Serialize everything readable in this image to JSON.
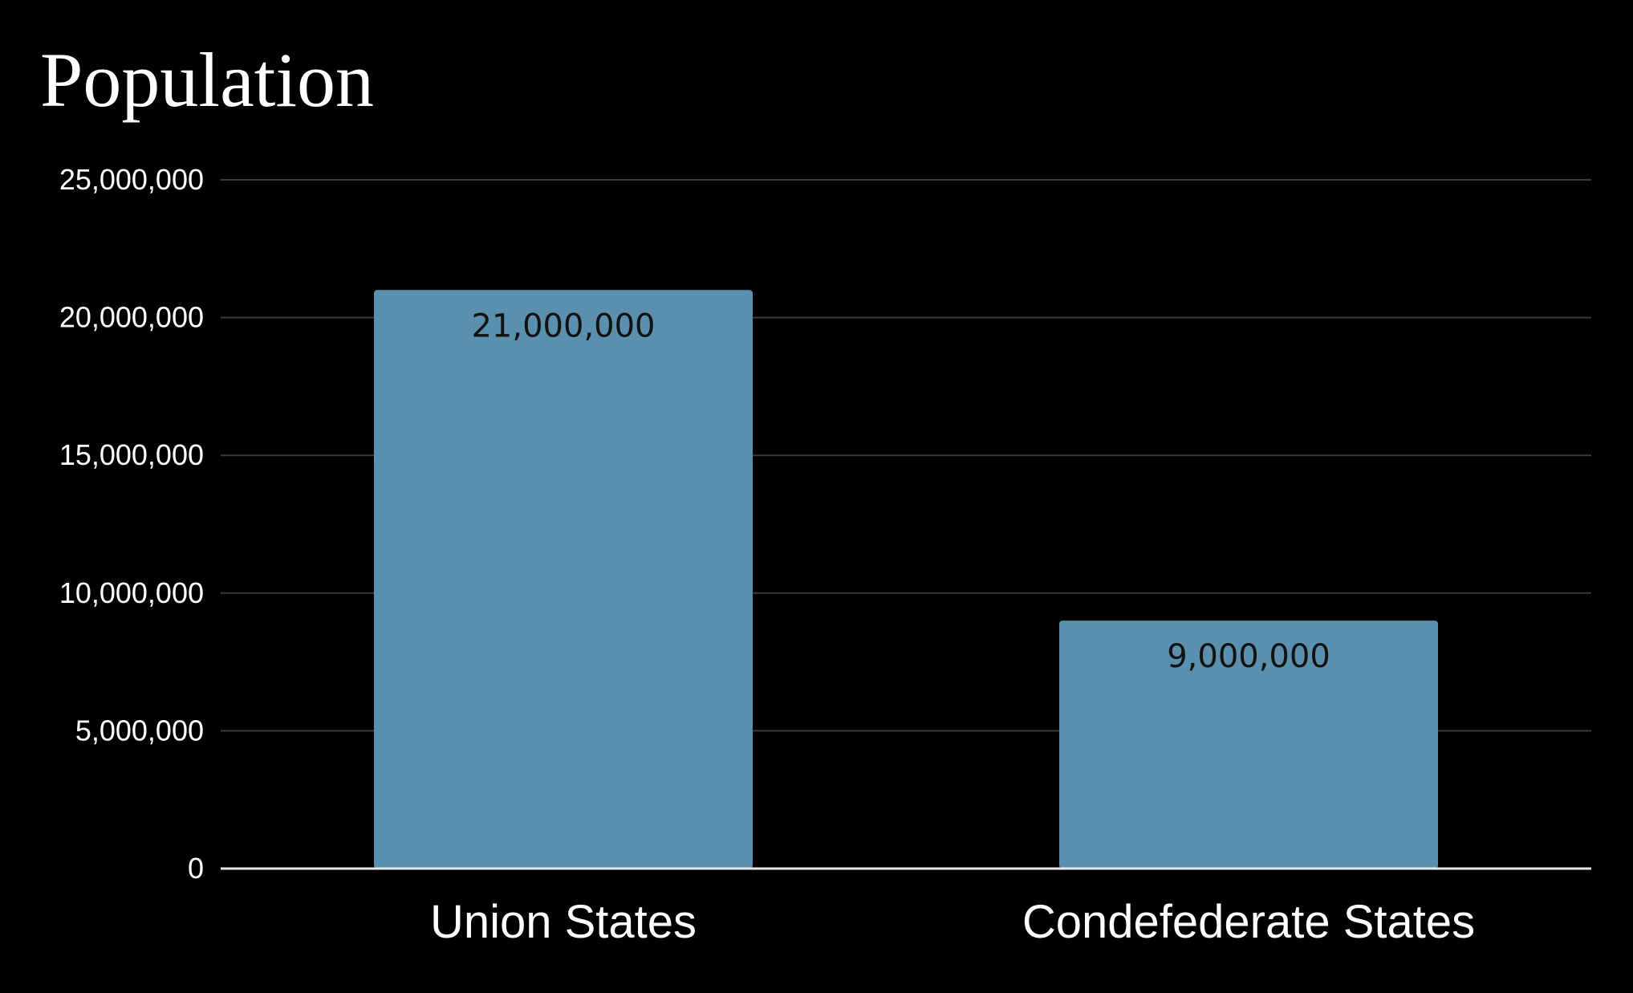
{
  "chart_data": {
    "type": "bar",
    "title": "Population",
    "categories": [
      "Union States",
      "Condefederate States"
    ],
    "values": [
      21000000,
      9000000
    ],
    "data_labels": [
      "21,000,000",
      "9,000,000"
    ],
    "xlabel": "",
    "ylabel": "",
    "ylim": [
      0,
      25000000
    ],
    "yticks": [
      0,
      5000000,
      10000000,
      15000000,
      20000000,
      25000000
    ],
    "ytick_labels": [
      "0",
      "5,000,000",
      "10,000,000",
      "15,000,000",
      "20,000,000",
      "25,000,000"
    ],
    "grid": true,
    "legend": "none",
    "colors": {
      "background": "#000000",
      "bar": "#5a90ad",
      "grid": "#3a3a3a",
      "axis": "#e6e6e6",
      "text": "#ffffff",
      "data_label": "#111111"
    }
  }
}
